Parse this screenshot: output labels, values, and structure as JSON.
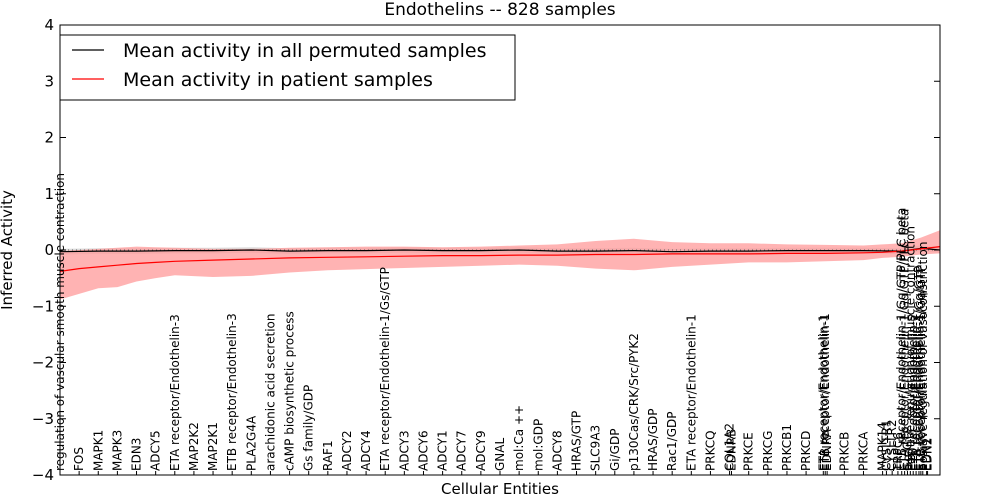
{
  "chart_data": {
    "type": "line",
    "title": "Endothelins -- 828 samples",
    "xlabel": "Cellular Entities",
    "ylabel": "Inferred Activity",
    "ylim": [
      -4,
      4
    ],
    "yticks": [
      "−4",
      "−3",
      "−2",
      "−1",
      "0",
      "1",
      "2",
      "3",
      "4"
    ],
    "yticks_values": [
      -4,
      -3,
      -2,
      -1,
      0,
      1,
      2,
      3,
      4
    ],
    "grid": false,
    "legend_position": "top-left",
    "colors": {
      "permuted": "#000000",
      "patient": "#ff0000",
      "band": "#ff9999",
      "perm_band": "#bbbbbb"
    },
    "categories": [
      "regulation of vascular smooth muscle contraction",
      "FOS",
      "MAPK1",
      "MAPK3",
      "EDN3",
      "ADCY5",
      "ETA receptor/Endothelin-3",
      "MAP2K2",
      "MAP2K1",
      "ETB receptor/Endothelin-3",
      "PLA2G4A",
      "arachidonic acid secretion",
      "cAMP biosynthetic process",
      "Gs family/GDP",
      "RAF1",
      "ADCY2",
      "ADCY4",
      "ETA receptor/Endothelin-1/Gs/GTP",
      "ADCY3",
      "ADCY6",
      "ADCY1",
      "ADCY7",
      "ADCY9",
      "GNAL",
      "mol:Ca ++",
      "mol:GDP",
      "ADCY8",
      "HRAS/GTP",
      "SLC9A3",
      "Gi/GDP",
      "p130Cas/CRK/Src/PYK2",
      "HRAS/GDP",
      "Rac1/GDP",
      "ETA receptor/Endothelin-1",
      "PRKCQ",
      "COL1A2",
      "EDNRB",
      "PRKCE",
      "PRKCG",
      "PRKCB1",
      "PRKCD",
      "ETA receptor/Endothelin-1",
      "ETB receptor/Endothelin-1",
      "EDNRA",
      "PRKCB",
      "PRKCA",
      "MAPK14",
      "CYSLTR1",
      "CYSLTR2",
      "TRPC6",
      "ETB receptor/Endothelin-1/Gq/GTP/PLC beta",
      "ETA receptor/Endothelin-1/Gq/GTP/PLC beta",
      "Gq/GTP",
      "Positive regulation of muscle contraction",
      "ETB receptor/Endothelin-2",
      "ETA receptor/Endothelin-2",
      "ETA receptor/Endothelin-1/Gq/GTP",
      "ETB receptor/Endothelin-1/Gq/GTP",
      "positive regulation of vasoconstriction",
      "EDN1",
      "EDN2"
    ],
    "label_x_values": [
      0,
      1,
      2,
      3,
      4,
      5,
      6,
      7,
      8,
      9,
      10,
      11,
      12,
      13,
      14,
      15,
      16,
      17,
      18,
      19,
      20,
      21,
      22,
      23,
      24,
      25,
      26,
      27,
      28,
      29,
      30,
      31,
      32,
      33,
      34,
      35,
      35.1,
      36,
      37,
      38,
      39,
      39.9,
      40,
      40.1,
      41,
      42,
      43,
      43.2,
      43.5,
      43.8,
      44,
      44.15,
      44.3,
      44.45,
      44.6,
      44.75,
      44.9,
      45,
      45.1,
      45.3,
      45.35
    ],
    "x_range": [
      0,
      46
    ],
    "series": [
      {
        "name": "Mean activity in all permuted samples",
        "x": [
          0,
          2,
          4,
          6,
          8,
          10,
          12,
          14,
          16,
          18,
          20,
          22,
          24,
          26,
          28,
          30,
          32,
          34,
          36,
          38,
          40,
          42,
          44,
          45,
          46
        ],
        "y": [
          -0.03,
          -0.02,
          -0.02,
          -0.01,
          -0.01,
          0.0,
          -0.02,
          -0.01,
          -0.01,
          0.0,
          -0.01,
          -0.01,
          0.0,
          -0.02,
          -0.02,
          -0.01,
          -0.03,
          -0.02,
          -0.02,
          -0.01,
          -0.01,
          -0.01,
          -0.02,
          0.03,
          0.0
        ]
      },
      {
        "name": "Mean activity in patient samples",
        "x": [
          0,
          1,
          2,
          3,
          4,
          5,
          6,
          8,
          10,
          12,
          14,
          16,
          18,
          20,
          22,
          24,
          26,
          28,
          30,
          32,
          34,
          36,
          38,
          40,
          42,
          43,
          44,
          45,
          46
        ],
        "y": [
          -0.38,
          -0.33,
          -0.3,
          -0.27,
          -0.24,
          -0.22,
          -0.2,
          -0.18,
          -0.16,
          -0.14,
          -0.13,
          -0.12,
          -0.11,
          -0.1,
          -0.1,
          -0.09,
          -0.09,
          -0.08,
          -0.08,
          -0.07,
          -0.07,
          -0.07,
          -0.06,
          -0.06,
          -0.05,
          -0.04,
          -0.02,
          0.02,
          0.06
        ],
        "lower": [
          -0.88,
          -0.78,
          -0.68,
          -0.66,
          -0.56,
          -0.5,
          -0.45,
          -0.48,
          -0.46,
          -0.4,
          -0.36,
          -0.34,
          -0.32,
          -0.3,
          -0.28,
          -0.26,
          -0.28,
          -0.33,
          -0.36,
          -0.3,
          -0.26,
          -0.22,
          -0.22,
          -0.2,
          -0.18,
          -0.14,
          -0.12,
          -0.08,
          -0.06
        ],
        "upper": [
          -0.02,
          0.0,
          0.02,
          0.04,
          0.06,
          0.05,
          0.04,
          0.02,
          0.02,
          0.04,
          0.05,
          0.06,
          0.06,
          0.05,
          0.06,
          0.08,
          0.1,
          0.16,
          0.2,
          0.14,
          0.12,
          0.12,
          0.1,
          0.09,
          0.08,
          0.1,
          0.12,
          0.22,
          0.35
        ]
      }
    ]
  }
}
